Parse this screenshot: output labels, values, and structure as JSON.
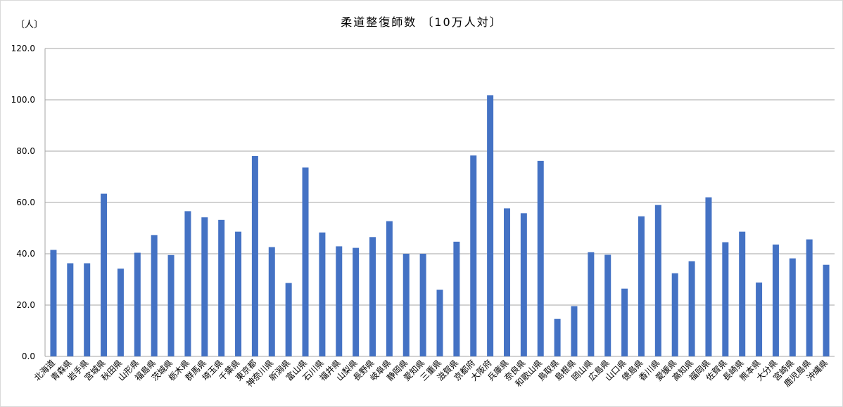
{
  "chart_data": {
    "type": "bar",
    "title": "柔道整復師数 〔10万人対〕",
    "ylabel": "〔人〕",
    "ylim": [
      0,
      120
    ],
    "yticks": [
      "0.0",
      "20.0",
      "40.0",
      "60.0",
      "80.0",
      "100.0",
      "120.0"
    ],
    "grid": true,
    "bar_color": "#4472C4",
    "categories": [
      "北海道",
      "青森県",
      "岩手県",
      "宮城県",
      "秋田県",
      "山形県",
      "福島県",
      "茨城県",
      "栃木県",
      "群馬県",
      "埼玉県",
      "千葉県",
      "東京都",
      "神奈川県",
      "新潟県",
      "富山県",
      "石川県",
      "福井県",
      "山梨県",
      "長野県",
      "岐阜県",
      "静岡県",
      "愛知県",
      "三重県",
      "滋賀県",
      "京都府",
      "大阪府",
      "兵庫県",
      "奈良県",
      "和歌山県",
      "鳥取県",
      "島根県",
      "岡山県",
      "広島県",
      "山口県",
      "徳島県",
      "香川県",
      "愛媛県",
      "高知県",
      "福岡県",
      "佐賀県",
      "長崎県",
      "熊本県",
      "大分県",
      "宮崎県",
      "鹿児島県",
      "沖縄県"
    ],
    "values": [
      41.5,
      36.3,
      36.3,
      63.4,
      34.2,
      40.4,
      47.3,
      39.5,
      56.6,
      54.2,
      53.2,
      48.6,
      78.1,
      42.6,
      28.6,
      73.6,
      48.3,
      42.9,
      42.3,
      46.5,
      52.7,
      40.0,
      40.0,
      26.0,
      44.7,
      78.3,
      101.8,
      57.7,
      55.8,
      76.2,
      14.6,
      19.6,
      40.6,
      39.6,
      26.4,
      54.6,
      59.0,
      32.4,
      37.1,
      62.0,
      44.5,
      48.6,
      28.8,
      43.6,
      38.2,
      45.6,
      35.7
    ]
  }
}
